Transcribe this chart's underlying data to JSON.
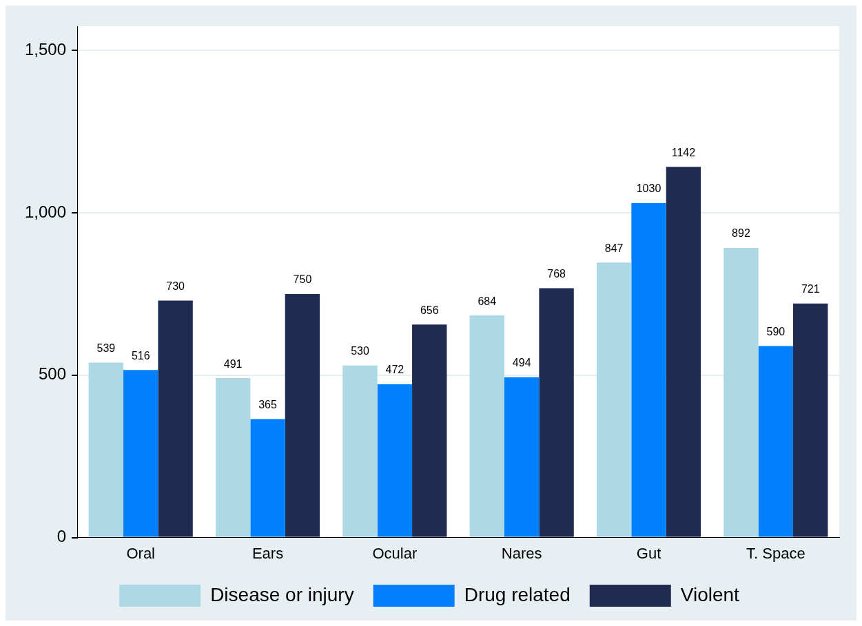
{
  "chart_data": {
    "type": "bar",
    "categories": [
      "Oral",
      "Ears",
      "Ocular",
      "Nares",
      "Gut",
      "T. Space"
    ],
    "series": [
      {
        "name": "Disease or injury",
        "color": "#add8e6",
        "values": [
          539,
          491,
          530,
          684,
          847,
          892
        ]
      },
      {
        "name": "Drug related",
        "color": "#0080ff",
        "values": [
          516,
          365,
          472,
          494,
          1030,
          590
        ]
      },
      {
        "name": "Violent",
        "color": "#1f2b50",
        "values": [
          730,
          750,
          656,
          768,
          1142,
          721
        ]
      }
    ],
    "ylim": [
      0,
      1575
    ],
    "yticks": [
      {
        "value": 0,
        "label": "0"
      },
      {
        "value": 500,
        "label": "500"
      },
      {
        "value": 1000,
        "label": "1,000"
      },
      {
        "value": 1500,
        "label": "1,500"
      }
    ],
    "grid": "y",
    "legend": "bottom",
    "data_labels": true
  }
}
